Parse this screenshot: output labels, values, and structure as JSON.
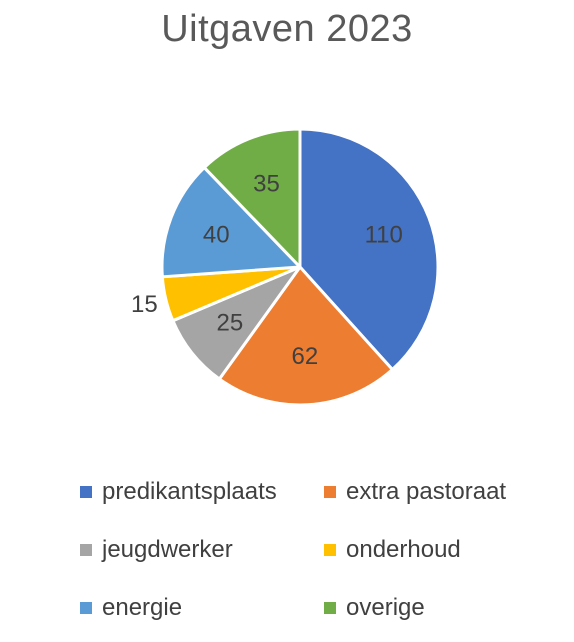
{
  "chart_data": {
    "type": "pie",
    "title": "Uitgaven 2023",
    "categories": [
      "predikantsplaats",
      "extra pastoraat",
      "jeugdwerker",
      "onderhoud",
      "energie",
      "overige"
    ],
    "values": [
      110,
      62,
      25,
      15,
      40,
      35
    ],
    "colors": [
      "#4472c4",
      "#ed7d31",
      "#a5a5a5",
      "#ffc000",
      "#5b9bd5",
      "#70ad47"
    ],
    "legend": "bottom",
    "data_labels": [
      "110",
      "62",
      "25",
      "15",
      "40",
      "35"
    ]
  }
}
